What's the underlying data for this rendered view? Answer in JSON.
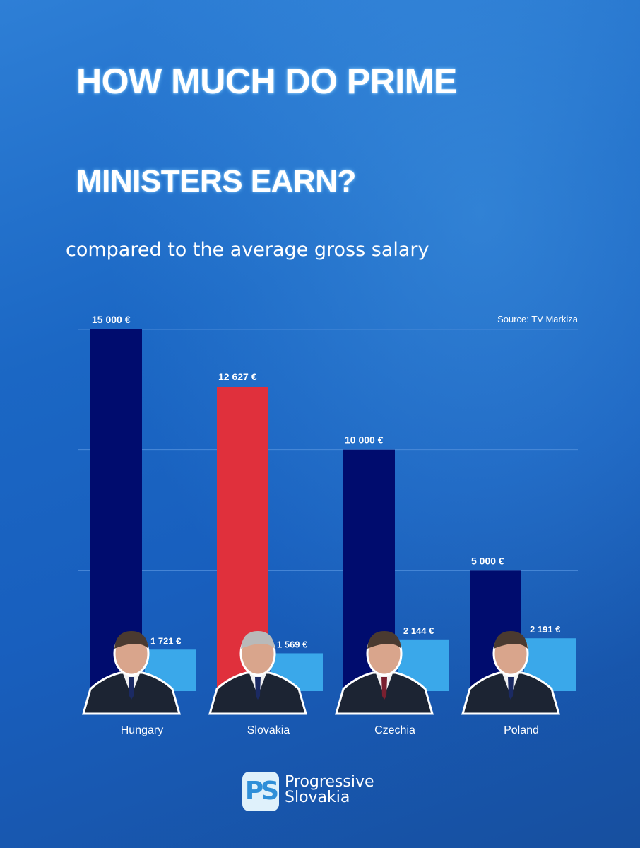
{
  "header": {
    "title_line1": "HOW MUCH DO PRIME",
    "title_line2": "MINISTERS EARN?",
    "subtitle": "compared to the average gross salary"
  },
  "source": "Source: TV Markiza",
  "logo": {
    "mark": "PS",
    "line1": "Progressive",
    "line2": "Slovakia"
  },
  "colors": {
    "pm_salary": "#000c6e",
    "pm_salary_highlight": "#e0303c",
    "avg_salary": "#3aa8ea",
    "gridline": "#4a8ad8"
  },
  "chart_data": {
    "type": "bar",
    "categories": [
      "Hungary",
      "Slovakia",
      "Czechia",
      "Poland"
    ],
    "series": [
      {
        "values": [
          15000,
          12627,
          10000,
          5000
        ],
        "labels": [
          "15 000 €",
          "12 627 €",
          "10 000 €",
          "5 000 €"
        ],
        "highlight_index": 1
      },
      {
        "values": [
          1721,
          1569,
          2144,
          2191
        ],
        "labels": [
          "1 721 €",
          "1 569 €",
          "2 144 €",
          "2 191 €"
        ]
      }
    ],
    "ylim": [
      0,
      15000
    ],
    "grid": true,
    "legend": "none"
  },
  "portraits": [
    "person-icon",
    "person-icon",
    "person-icon",
    "person-icon"
  ]
}
